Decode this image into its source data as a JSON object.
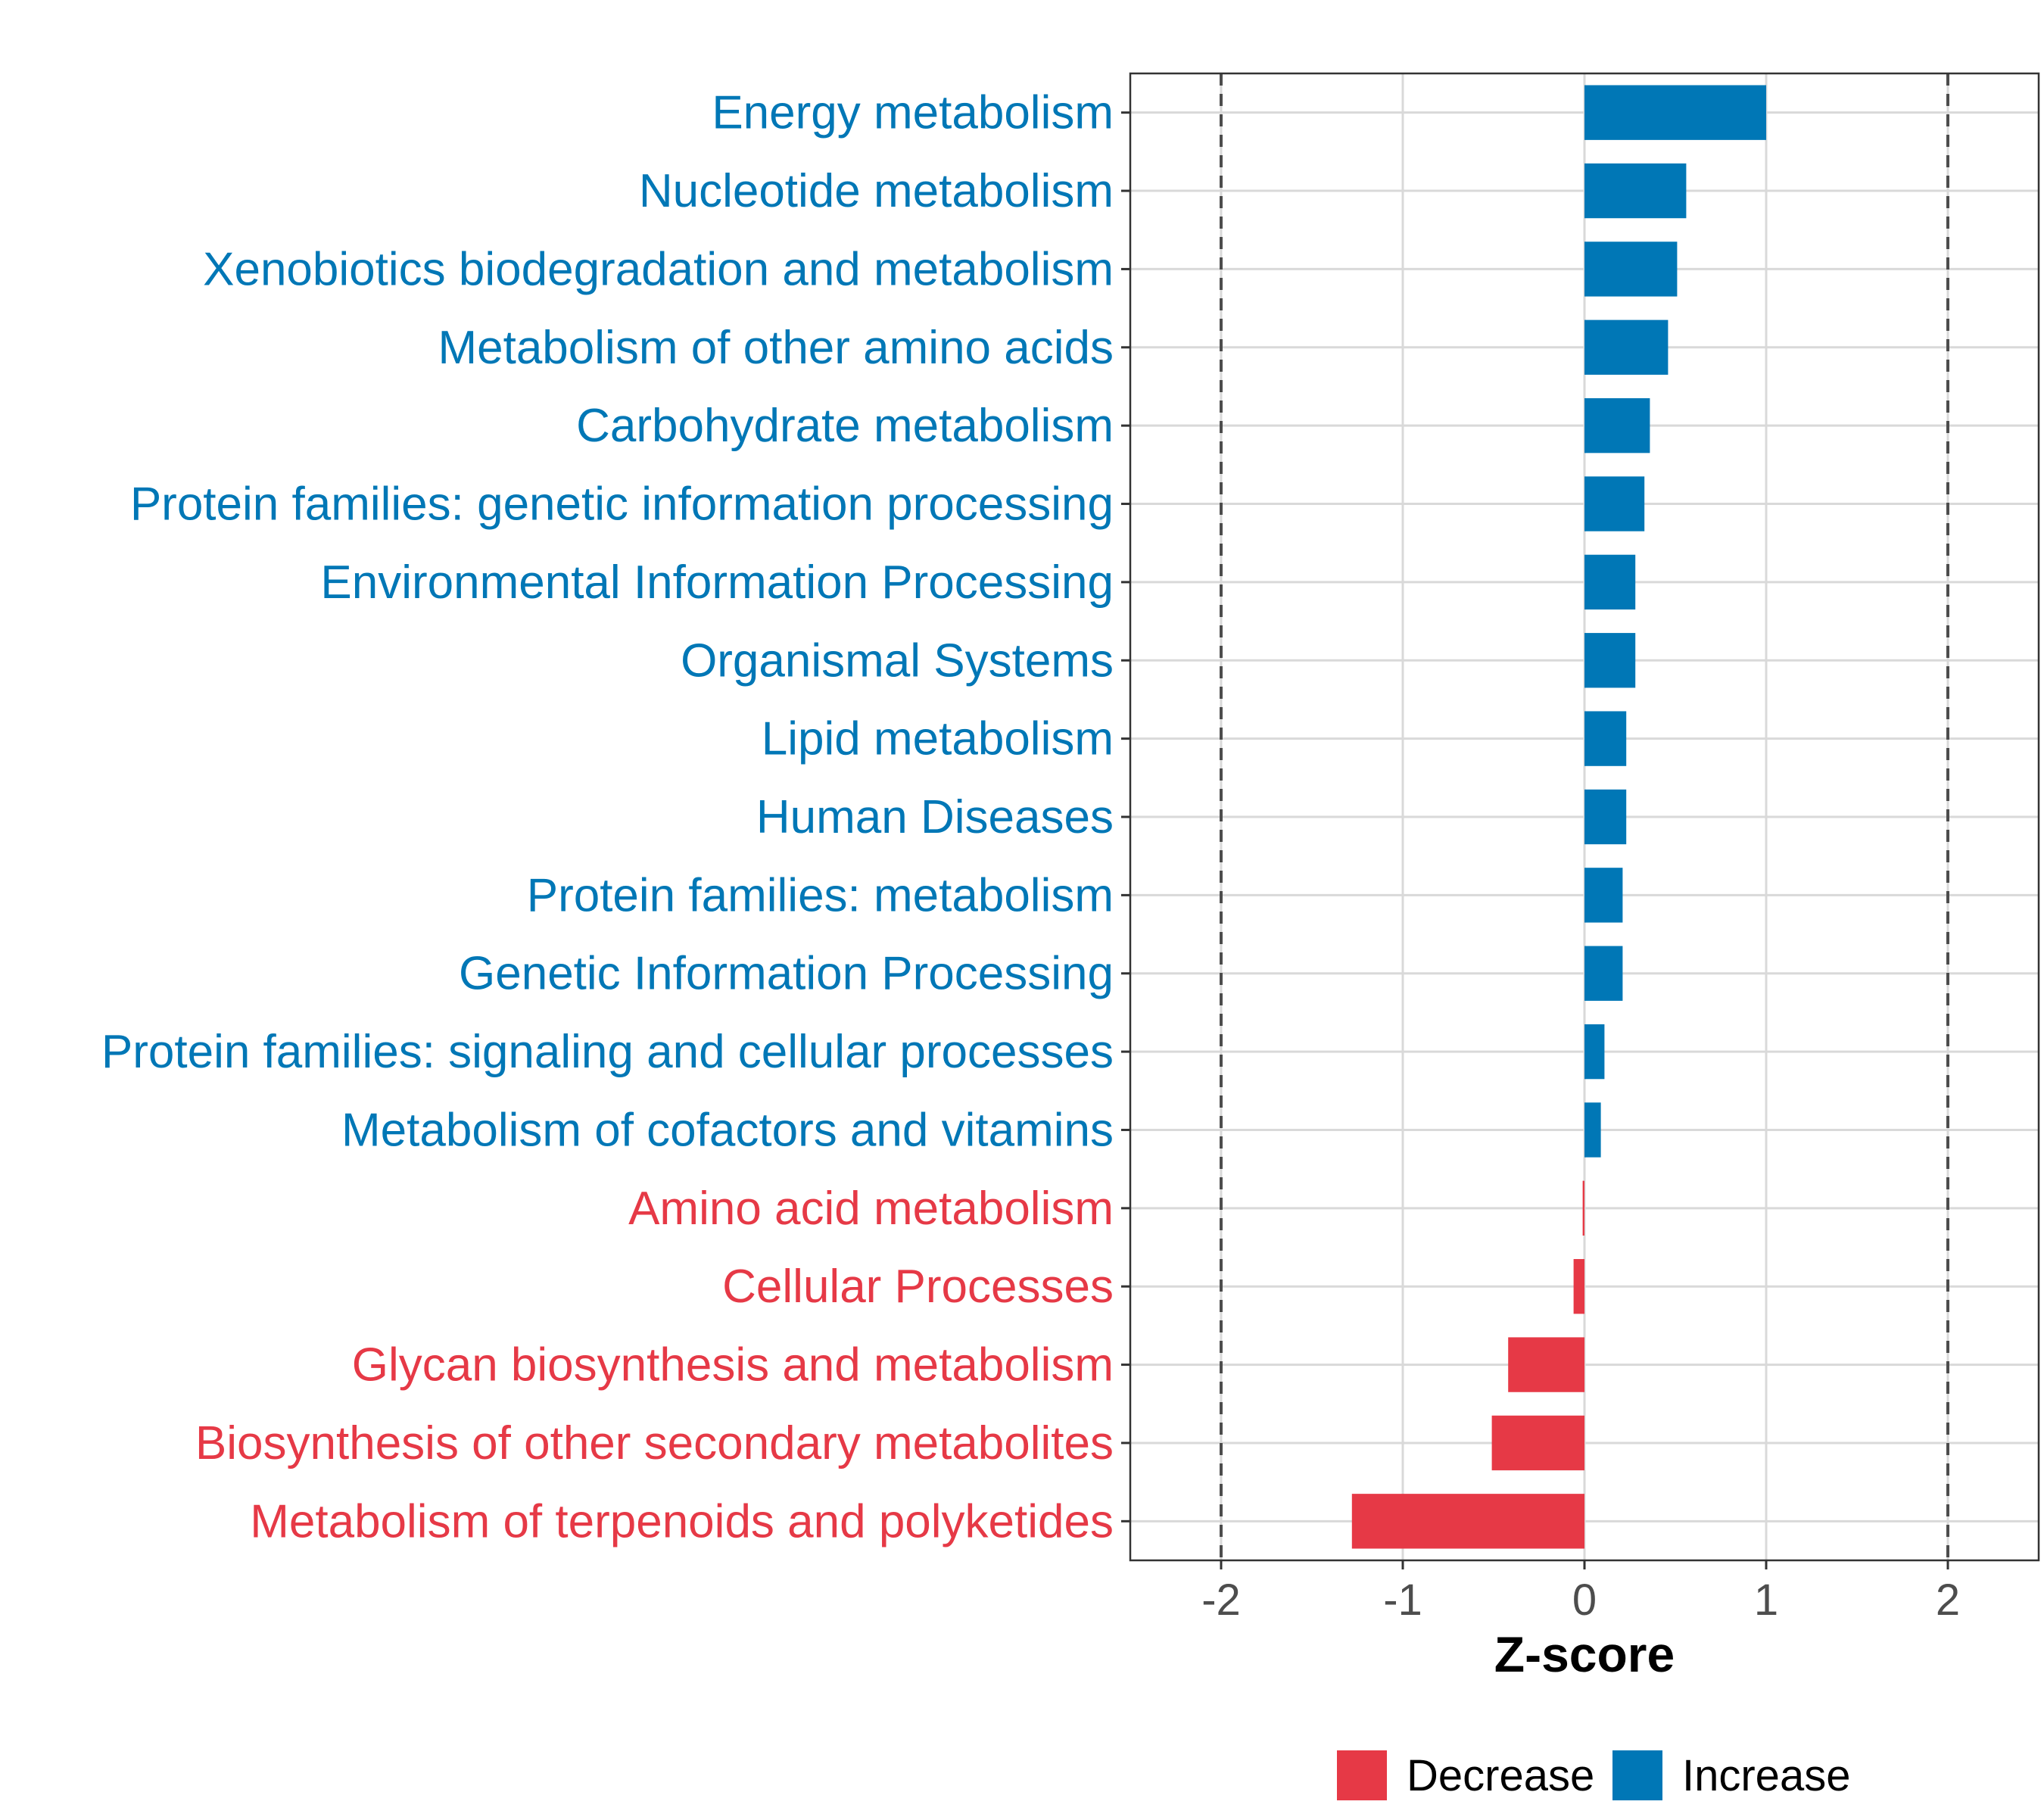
{
  "chart_data": {
    "type": "bar",
    "orientation": "horizontal",
    "title": "",
    "xlabel": "Z-score",
    "ylabel": "",
    "xlim": [
      -2.5,
      2.5
    ],
    "xticks": [
      -2,
      -1,
      0,
      1,
      2
    ],
    "tick_labels": [
      "-2",
      "-1",
      "0",
      "1",
      "2"
    ],
    "reference_lines": [
      -2,
      2
    ],
    "grid": true,
    "colors": {
      "Decrease": "#e63946",
      "Increase": "#0077b6"
    },
    "legend": {
      "position": "bottom",
      "entries": [
        "Decrease",
        "Increase"
      ]
    },
    "categories": [
      "Energy metabolism",
      "Nucleotide metabolism",
      "Xenobiotics biodegradation and metabolism",
      "Metabolism of other amino acids",
      "Carbohydrate metabolism",
      "Protein families: genetic information processing",
      "Environmental Information Processing",
      "Organismal Systems",
      "Lipid metabolism",
      "Human Diseases",
      "Protein families: metabolism",
      "Genetic Information Processing",
      "Protein families: signaling and cellular processes",
      "Metabolism of cofactors and vitamins",
      "Amino acid metabolism",
      "Cellular Processes",
      "Glycan biosynthesis and metabolism",
      "Biosynthesis of other secondary metabolites",
      "Metabolism of terpenoids and polyketides"
    ],
    "values": [
      1.0,
      0.56,
      0.51,
      0.46,
      0.36,
      0.33,
      0.28,
      0.28,
      0.23,
      0.23,
      0.21,
      0.21,
      0.11,
      0.09,
      -0.01,
      -0.06,
      -0.42,
      -0.51,
      -1.28
    ],
    "groups": [
      "Increase",
      "Increase",
      "Increase",
      "Increase",
      "Increase",
      "Increase",
      "Increase",
      "Increase",
      "Increase",
      "Increase",
      "Increase",
      "Increase",
      "Increase",
      "Increase",
      "Decrease",
      "Decrease",
      "Decrease",
      "Decrease",
      "Decrease"
    ]
  }
}
